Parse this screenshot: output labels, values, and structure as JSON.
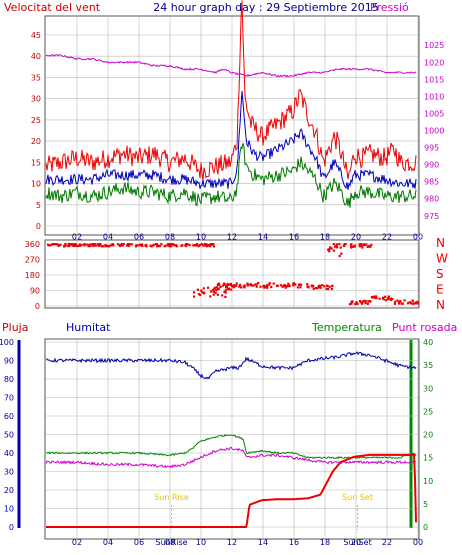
{
  "header": {
    "left_label": "Velocitat del vent",
    "title": "24 hour graph day : 29 Septiembre 2015",
    "right_label": "Pressió"
  },
  "colors": {
    "frame": "#555555",
    "grid": "#b8b8b8",
    "wind_avg": "#0000bb",
    "wind_gust": "#ee0000",
    "wind_low": "#007700",
    "pressure": "#cc00cc",
    "direction": "#ee0000",
    "humidity": "#0000aa",
    "temperature": "#008800",
    "dew_point": "#cc00cc",
    "rain": "#ee0000",
    "sun": "#e6c400",
    "left_axis_red": "#cc0000",
    "right_axis_magenta": "#cc00cc",
    "left_axis_blue": "#0000aa",
    "right_axis_green": "#008800"
  },
  "chart_data": [
    {
      "type": "line",
      "panel": "wind and pressure",
      "x_label": "hour",
      "x_ticks": [
        "02",
        "04",
        "06",
        "08",
        "10",
        "12",
        "14",
        "16",
        "18",
        "20",
        "22",
        "00"
      ],
      "x_range_hours": [
        0,
        24
      ],
      "left_axis": {
        "label": "Velocitat del vent",
        "range": [
          0,
          45
        ],
        "ticks": [
          0,
          5,
          10,
          15,
          20,
          25,
          30,
          35,
          40,
          45
        ]
      },
      "right_axis": {
        "label": "Pressió",
        "range": [
          972,
          1028
        ],
        "ticks": [
          975,
          980,
          985,
          990,
          995,
          1000,
          1005,
          1010,
          1015,
          1020,
          1025
        ]
      },
      "series": [
        {
          "axis": "left",
          "color_key": "wind_gust",
          "points": [
            [
              0,
              14
            ],
            [
              1,
              15
            ],
            [
              2,
              16
            ],
            [
              3,
              15
            ],
            [
              4,
              16
            ],
            [
              5,
              17
            ],
            [
              6,
              16
            ],
            [
              7,
              17
            ],
            [
              8,
              15
            ],
            [
              9,
              16
            ],
            [
              10,
              13
            ],
            [
              11,
              14
            ],
            [
              12,
              15
            ],
            [
              12.4,
              20
            ],
            [
              12.7,
              55
            ],
            [
              12.9,
              30
            ],
            [
              13.3,
              24
            ],
            [
              14,
              21
            ],
            [
              15,
              24
            ],
            [
              16,
              27
            ],
            [
              16.5,
              31
            ],
            [
              17,
              26
            ],
            [
              17.5,
              22
            ],
            [
              18,
              15
            ],
            [
              18.7,
              21
            ],
            [
              19,
              19
            ],
            [
              19.6,
              11
            ],
            [
              20,
              17
            ],
            [
              20.5,
              16
            ],
            [
              21,
              17
            ],
            [
              22,
              16
            ],
            [
              22.6,
              18
            ],
            [
              23,
              15
            ],
            [
              24,
              15
            ]
          ]
        },
        {
          "axis": "left",
          "color_key": "wind_avg",
          "points": [
            [
              0,
              11
            ],
            [
              1,
              11
            ],
            [
              2,
              11
            ],
            [
              3,
              11
            ],
            [
              4,
              12
            ],
            [
              5,
              12
            ],
            [
              6,
              12
            ],
            [
              7,
              12
            ],
            [
              8,
              11
            ],
            [
              9,
              11
            ],
            [
              10,
              10
            ],
            [
              11,
              10
            ],
            [
              12,
              10
            ],
            [
              12.4,
              13
            ],
            [
              12.7,
              32
            ],
            [
              13,
              20
            ],
            [
              13.5,
              17
            ],
            [
              14,
              16
            ],
            [
              15,
              18
            ],
            [
              16,
              20
            ],
            [
              16.5,
              22
            ],
            [
              17,
              19
            ],
            [
              17.5,
              16
            ],
            [
              18,
              11
            ],
            [
              18.7,
              15
            ],
            [
              19,
              13
            ],
            [
              19.6,
              9
            ],
            [
              20,
              12
            ],
            [
              21,
              12
            ],
            [
              22,
              11
            ],
            [
              23,
              10
            ],
            [
              24,
              10
            ]
          ]
        },
        {
          "axis": "left",
          "color_key": "wind_low",
          "points": [
            [
              0,
              8
            ],
            [
              1,
              7
            ],
            [
              2,
              8
            ],
            [
              3,
              7
            ],
            [
              4,
              8
            ],
            [
              5,
              9
            ],
            [
              6,
              8
            ],
            [
              7,
              8
            ],
            [
              8,
              7
            ],
            [
              9,
              8
            ],
            [
              10,
              6
            ],
            [
              11,
              7
            ],
            [
              12,
              6
            ],
            [
              12.4,
              9
            ],
            [
              12.7,
              20
            ],
            [
              13,
              14
            ],
            [
              13.5,
              12
            ],
            [
              14,
              11
            ],
            [
              15,
              12
            ],
            [
              16,
              13
            ],
            [
              16.5,
              15
            ],
            [
              17,
              13
            ],
            [
              17.5,
              11
            ],
            [
              18,
              7
            ],
            [
              18.7,
              10
            ],
            [
              19,
              9
            ],
            [
              19.6,
              5
            ],
            [
              20,
              8
            ],
            [
              21,
              8
            ],
            [
              22,
              7
            ],
            [
              23,
              7
            ],
            [
              24,
              7
            ]
          ]
        },
        {
          "axis": "right",
          "color_key": "pressure",
          "points": [
            [
              0,
              1022
            ],
            [
              1,
              1022
            ],
            [
              2,
              1021
            ],
            [
              3,
              1021
            ],
            [
              4,
              1020
            ],
            [
              5,
              1020
            ],
            [
              6,
              1020
            ],
            [
              7,
              1019
            ],
            [
              8,
              1019
            ],
            [
              9,
              1018
            ],
            [
              10,
              1018
            ],
            [
              11,
              1017
            ],
            [
              11.5,
              1018
            ],
            [
              12,
              1017
            ],
            [
              13,
              1016
            ],
            [
              14,
              1017
            ],
            [
              15,
              1016
            ],
            [
              16,
              1016
            ],
            [
              17,
              1017
            ],
            [
              18,
              1017
            ],
            [
              19,
              1018
            ],
            [
              20,
              1018
            ],
            [
              21,
              1018
            ],
            [
              22,
              1017
            ],
            [
              23,
              1017
            ],
            [
              24,
              1017
            ]
          ]
        }
      ]
    },
    {
      "type": "scatter",
      "panel": "wind direction",
      "left_axis": {
        "range": [
          0,
          360
        ],
        "ticks": [
          0,
          90,
          180,
          270,
          360
        ]
      },
      "right_labels": [
        "N",
        "W",
        "S",
        "E",
        "N"
      ],
      "segments": [
        {
          "from_hour": 0,
          "to_hour": 11,
          "degrees": 355,
          "jitter": 8
        },
        {
          "from_hour": 9.5,
          "to_hour": 12,
          "degrees": 80,
          "jitter": 30
        },
        {
          "from_hour": 11,
          "to_hour": 17,
          "degrees": 120,
          "jitter": 14
        },
        {
          "from_hour": 17,
          "to_hour": 18.5,
          "degrees": 110,
          "jitter": 12
        },
        {
          "from_hour": 18.2,
          "to_hour": 19.6,
          "degrees": 330,
          "jitter": 40
        },
        {
          "from_hour": 19.6,
          "to_hour": 21,
          "degrees": 350,
          "jitter": 10
        },
        {
          "from_hour": 19.6,
          "to_hour": 21,
          "degrees": 20,
          "jitter": 10
        },
        {
          "from_hour": 21,
          "to_hour": 22.4,
          "degrees": 45,
          "jitter": 12
        },
        {
          "from_hour": 22.4,
          "to_hour": 24,
          "degrees": 25,
          "jitter": 12
        }
      ]
    },
    {
      "type": "line",
      "panel": "humidity, temperature, dew point, rain",
      "legend": [
        "Pluja",
        "Humitat",
        "Temperatura",
        "Punt rosada"
      ],
      "x_ticks": [
        "02",
        "04",
        "06",
        "08",
        "10",
        "12",
        "14",
        "16",
        "18",
        "20",
        "22",
        "00"
      ],
      "x_range_hours": [
        0,
        24
      ],
      "left_axis": {
        "label": "Humitat",
        "range": [
          0,
          100
        ],
        "ticks": [
          0,
          10,
          20,
          30,
          40,
          50,
          60,
          70,
          80,
          90,
          100
        ]
      },
      "right_axis": {
        "label": "Temperatura",
        "range": [
          0,
          40
        ],
        "ticks": [
          0,
          5,
          10,
          15,
          20,
          25,
          30,
          35,
          40
        ]
      },
      "annotations": [
        {
          "text": "Sun Rise",
          "hour": 8.1
        },
        {
          "text": "Sun Set",
          "hour": 20.1
        }
      ],
      "series": [
        {
          "name": "Humitat",
          "axis": "left",
          "color_key": "humidity",
          "points": [
            [
              0,
              90
            ],
            [
              2,
              90
            ],
            [
              4,
              90
            ],
            [
              6,
              90
            ],
            [
              8,
              90
            ],
            [
              9,
              89
            ],
            [
              9.5,
              86
            ],
            [
              10,
              82
            ],
            [
              10.5,
              80
            ],
            [
              11,
              84
            ],
            [
              12,
              86
            ],
            [
              12.5,
              86
            ],
            [
              13,
              91
            ],
            [
              13.5,
              89
            ],
            [
              14,
              87
            ],
            [
              15,
              86
            ],
            [
              16,
              86
            ],
            [
              17,
              90
            ],
            [
              18,
              91
            ],
            [
              19,
              92
            ],
            [
              20,
              94
            ],
            [
              21,
              93
            ],
            [
              22,
              90
            ],
            [
              23,
              87
            ],
            [
              24,
              86
            ]
          ]
        },
        {
          "name": "Temperatura",
          "axis": "right",
          "color_key": "temperature",
          "points": [
            [
              0,
              16
            ],
            [
              2,
              16
            ],
            [
              4,
              16
            ],
            [
              6,
              16
            ],
            [
              8,
              15.5
            ],
            [
              9,
              16
            ],
            [
              9.5,
              17
            ],
            [
              10,
              18.5
            ],
            [
              11,
              19.5
            ],
            [
              12,
              20
            ],
            [
              12.8,
              19
            ],
            [
              13,
              16
            ],
            [
              14,
              16.5
            ],
            [
              15,
              16
            ],
            [
              16,
              16
            ],
            [
              17,
              15
            ],
            [
              18,
              15
            ],
            [
              19,
              15
            ],
            [
              20,
              15
            ],
            [
              21,
              15
            ],
            [
              22,
              15
            ],
            [
              23,
              15
            ],
            [
              23.8,
              16
            ],
            [
              24,
              15.5
            ]
          ]
        },
        {
          "name": "Punt rosada",
          "axis": "right",
          "color_key": "dew_point",
          "points": [
            [
              0,
              14
            ],
            [
              2,
              14
            ],
            [
              4,
              13.5
            ],
            [
              6,
              13.5
            ],
            [
              8,
              13
            ],
            [
              9,
              13.5
            ],
            [
              10,
              15
            ],
            [
              11,
              16.5
            ],
            [
              12,
              17
            ],
            [
              12.8,
              16.5
            ],
            [
              13,
              15
            ],
            [
              14,
              15.5
            ],
            [
              15,
              15.5
            ],
            [
              16,
              15
            ],
            [
              17,
              14.5
            ],
            [
              18,
              14
            ],
            [
              19,
              14
            ],
            [
              20,
              14
            ],
            [
              21,
              14
            ],
            [
              22,
              14
            ],
            [
              23,
              14
            ],
            [
              24,
              14
            ]
          ]
        },
        {
          "name": "Pluja",
          "axis": "right",
          "color_key": "rain",
          "points": [
            [
              0,
              0
            ],
            [
              12.7,
              0
            ],
            [
              13,
              0
            ],
            [
              13.2,
              4.8
            ],
            [
              14,
              5.8
            ],
            [
              15,
              6
            ],
            [
              16,
              6
            ],
            [
              17,
              6.2
            ],
            [
              17.8,
              7
            ],
            [
              18.2,
              9.5
            ],
            [
              18.6,
              12
            ],
            [
              19.1,
              14
            ],
            [
              20,
              15.2
            ],
            [
              21,
              15.6
            ],
            [
              22,
              15.6
            ],
            [
              23,
              15.6
            ],
            [
              23.9,
              15.6
            ],
            [
              24,
              1
            ]
          ]
        }
      ]
    }
  ],
  "legend_bottom": {
    "rain": "Pluja",
    "humidity": "Humitat",
    "temperature": "Temperatura",
    "dew": "Punt rosada"
  }
}
